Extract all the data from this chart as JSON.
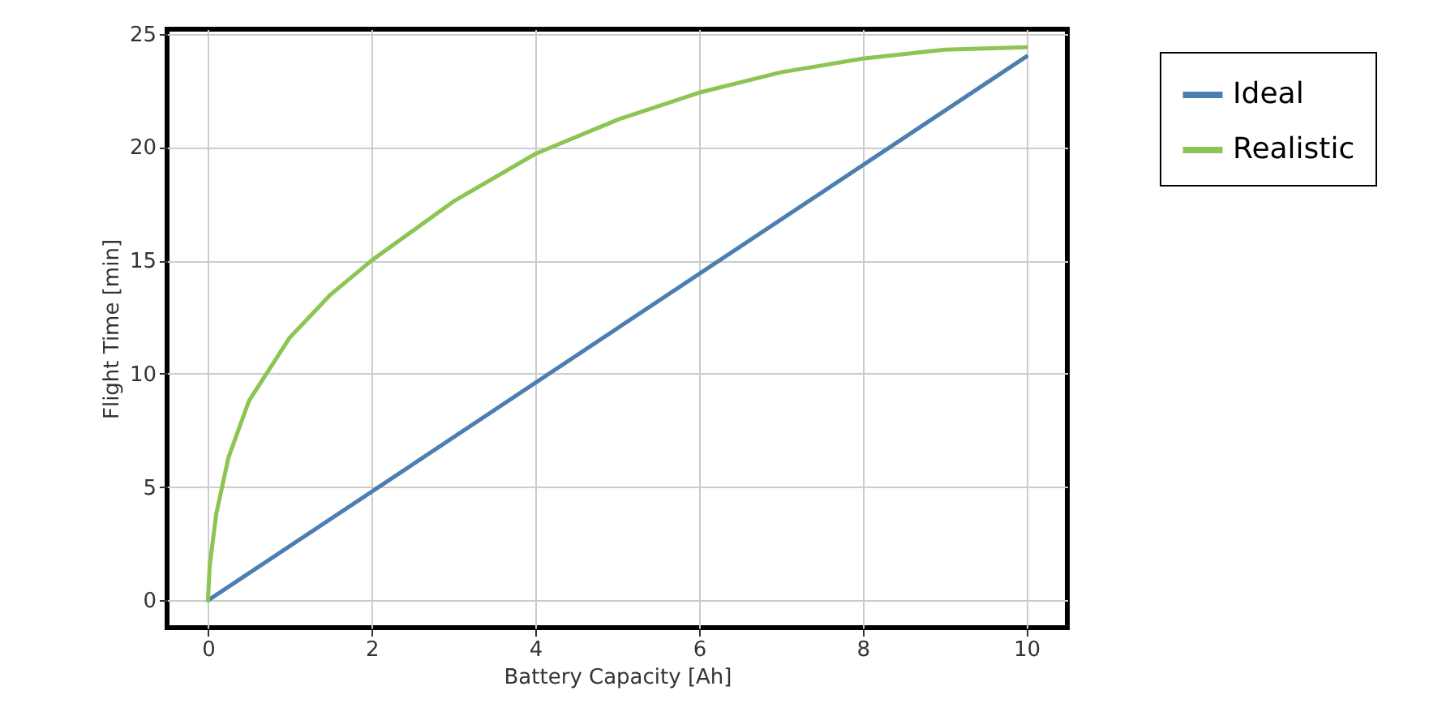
{
  "chart_data": {
    "type": "line",
    "xlabel": "Battery Capacity [Ah]",
    "ylabel": "Flight Time [min]",
    "xlim": [
      -0.5,
      10.5
    ],
    "ylim": [
      -1.2,
      25.2
    ],
    "xticks": [
      0,
      2,
      4,
      6,
      8,
      10
    ],
    "yticks": [
      0,
      5,
      10,
      15,
      20,
      25
    ],
    "grid": true,
    "legend": "top right",
    "series": [
      {
        "name": "Ideal",
        "color": "#4a7fb0",
        "x": [
          0,
          10
        ],
        "values": [
          0,
          24
        ]
      },
      {
        "name": "Realistic",
        "color": "#8cc553",
        "x": [
          0,
          0.02,
          0.1,
          0.25,
          0.5,
          1,
          1.5,
          2,
          3,
          4,
          5,
          6,
          7,
          8,
          9,
          10
        ],
        "values": [
          0,
          1.5,
          3.8,
          6.3,
          8.8,
          11.6,
          13.5,
          15,
          17.6,
          19.7,
          21.2,
          22.4,
          23.3,
          23.9,
          24.3,
          24.4
        ]
      }
    ]
  }
}
